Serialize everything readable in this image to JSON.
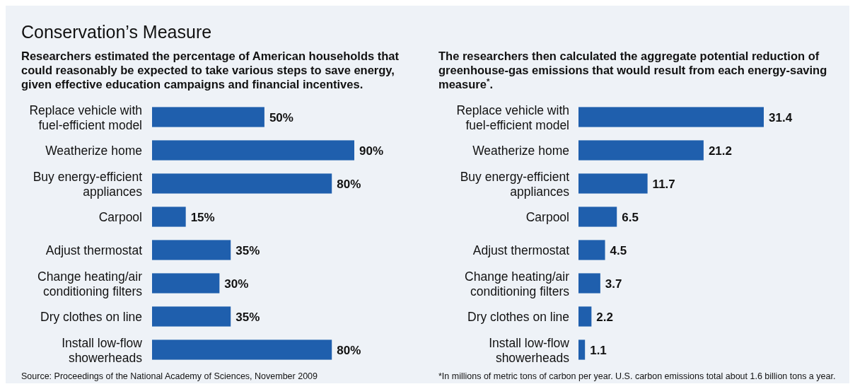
{
  "chart_data": [
    {
      "type": "bar",
      "orientation": "horizontal",
      "title": "Conservation’s Measure",
      "subtitle": "Researchers estimated the percentage of American households that could reasonably be expected to take various steps to save energy, given effective education campaigns and financial incentives.",
      "categories": [
        "Replace vehicle with fuel-efficient model",
        "Weatherize home",
        "Buy energy-efficient appliances",
        "Carpool",
        "Adjust thermostat",
        "Change heating/air conditioning filters",
        "Dry clothes on line",
        "Install low-flow showerheads"
      ],
      "values": [
        50,
        90,
        80,
        15,
        35,
        30,
        35,
        80
      ],
      "value_labels": [
        "50%",
        "90%",
        "80%",
        "15%",
        "35%",
        "30%",
        "35%",
        "80%"
      ],
      "color": "#1f5fad",
      "annotations": [
        "Source: Proceedings of the National Academy of Sciences, November 2009"
      ]
    },
    {
      "type": "bar",
      "orientation": "horizontal",
      "subtitle": "The researchers then calculated the aggregate potential reduction of greenhouse-gas emissions that would result from each energy-saving measure$^{*}$.",
      "categories": [
        "Replace vehicle with fuel-efficient model",
        "Weatherize home",
        "Buy energy-efficient appliances",
        "Carpool",
        "Adjust thermostat",
        "Change heating/air conditioning filters",
        "Dry clothes on line",
        "Install low-flow showerheads"
      ],
      "values": [
        31.4,
        21.2,
        11.7,
        6.5,
        4.5,
        3.7,
        2.2,
        1.1
      ],
      "data_labels": true,
      "color": "#1f5fad",
      "annotations": [
        "*In millions of metric tons of carbon per year. U.S. carbon emissions total about 1.6 billion tons a year."
      ]
    }
  ]
}
